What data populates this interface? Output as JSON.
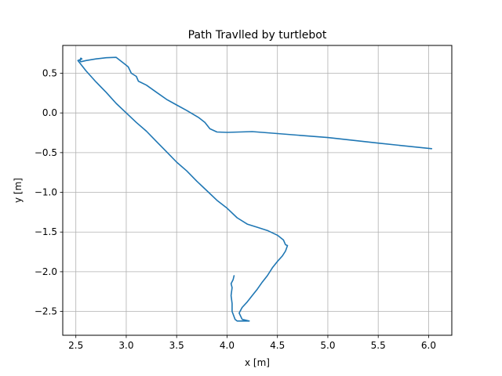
{
  "chart_data": {
    "type": "line",
    "title": "Path Travlled by turtlebot",
    "xlabel": "x [m]",
    "ylabel": "y [m]",
    "xlim": [
      2.37,
      6.23
    ],
    "ylim": [
      -2.8,
      0.85
    ],
    "grid": true,
    "x_ticks": [
      2.5,
      3.0,
      3.5,
      4.0,
      4.5,
      5.0,
      5.5,
      6.0
    ],
    "x_tick_labels": [
      "2.5",
      "3.0",
      "3.5",
      "4.0",
      "4.5",
      "5.0",
      "5.5",
      "6.0"
    ],
    "y_ticks": [
      0.5,
      0.0,
      -0.5,
      -1.0,
      -1.5,
      -2.0,
      -2.5
    ],
    "y_tick_labels": [
      "0.5",
      "0.0",
      "−0.5",
      "−1.0",
      "−1.5",
      "−2.0",
      "−2.5"
    ],
    "series": [
      {
        "color": "#1f77b4",
        "x": [
          6.03,
          5.5,
          5.0,
          4.5,
          4.25,
          4.0,
          3.9,
          3.83,
          3.78,
          3.72,
          3.6,
          3.5,
          3.4,
          3.3,
          3.2,
          3.12,
          3.1,
          3.05,
          3.02,
          2.97,
          2.9,
          2.8,
          2.7,
          2.6,
          2.55,
          2.54,
          2.55,
          2.56,
          2.52,
          2.6,
          2.7,
          2.8,
          2.9,
          3.0,
          3.1,
          3.2,
          3.3,
          3.4,
          3.5,
          3.6,
          3.7,
          3.8,
          3.9,
          4.0,
          4.1,
          4.2,
          4.3,
          4.4,
          4.5,
          4.56,
          4.58,
          4.6,
          4.58,
          4.55,
          4.5,
          4.45,
          4.4,
          4.35,
          4.3,
          4.25,
          4.2,
          4.15,
          4.12,
          4.15,
          4.22,
          4.1,
          4.08,
          4.05,
          4.05,
          4.04,
          4.05,
          4.04,
          4.06,
          4.07
        ],
        "y": [
          -0.45,
          -0.38,
          -0.31,
          -0.26,
          -0.235,
          -0.245,
          -0.24,
          -0.2,
          -0.12,
          -0.06,
          0.03,
          0.1,
          0.17,
          0.26,
          0.35,
          0.4,
          0.46,
          0.5,
          0.58,
          0.63,
          0.7,
          0.695,
          0.68,
          0.66,
          0.645,
          0.66,
          0.69,
          0.68,
          0.66,
          0.53,
          0.39,
          0.26,
          0.12,
          0.0,
          -0.12,
          -0.23,
          -0.36,
          -0.49,
          -0.62,
          -0.73,
          -0.86,
          -0.98,
          -1.1,
          -1.2,
          -1.32,
          -1.4,
          -1.44,
          -1.48,
          -1.54,
          -1.6,
          -1.66,
          -1.67,
          -1.74,
          -1.8,
          -1.87,
          -1.95,
          -2.05,
          -2.13,
          -2.22,
          -2.3,
          -2.38,
          -2.45,
          -2.52,
          -2.6,
          -2.62,
          -2.62,
          -2.6,
          -2.5,
          -2.4,
          -2.3,
          -2.2,
          -2.15,
          -2.1,
          -2.05
        ]
      }
    ]
  }
}
